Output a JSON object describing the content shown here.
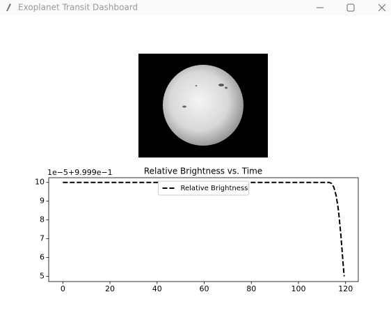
{
  "window": {
    "title": "Exoplanet Transit Dashboard"
  },
  "chart_data": {
    "type": "line",
    "title": "Relative Brightness vs. Time",
    "y_offset_label": "1e−5+9.999e−1",
    "x": [
      0,
      113,
      114,
      115,
      116,
      117,
      118,
      119,
      119.4
    ],
    "series": [
      {
        "name": "Relative Brightness",
        "color": "#000000",
        "linestyle": "dashed",
        "values": [
          10,
          10,
          9.95,
          9.75,
          9.3,
          8.5,
          7.2,
          5.6,
          5
        ]
      }
    ],
    "xlim": [
      -6,
      125.4
    ],
    "ylim": [
      4.72,
      10.25
    ],
    "xticks": [
      0,
      20,
      40,
      60,
      80,
      100,
      120
    ],
    "yticks": [
      5,
      6,
      7,
      8,
      9,
      10
    ],
    "legend": "upper center"
  }
}
